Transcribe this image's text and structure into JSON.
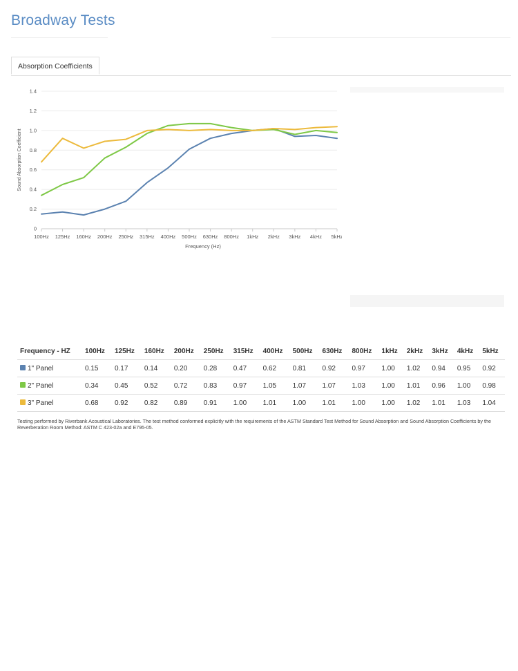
{
  "page": {
    "title": "Broadway Tests"
  },
  "tabs": [
    {
      "label": "Absorption Coefficients",
      "active": true
    }
  ],
  "colors": {
    "title": "#5a8cc4",
    "panel1": "#5b82b0",
    "panel2": "#7ec846",
    "panel3": "#ecba3c"
  },
  "chart_data": {
    "type": "line",
    "categories": [
      "100Hz",
      "125Hz",
      "160Hz",
      "200Hz",
      "250Hz",
      "315Hz",
      "400Hz",
      "500Hz",
      "630Hz",
      "800Hz",
      "1kHz",
      "2kHz",
      "3kHz",
      "4kHz",
      "5kHz"
    ],
    "series": [
      {
        "name": "1\" Panel",
        "color": "#5b82b0",
        "values": [
          0.15,
          0.17,
          0.14,
          0.2,
          0.28,
          0.47,
          0.62,
          0.81,
          0.92,
          0.97,
          1.0,
          1.02,
          0.94,
          0.95,
          0.92
        ]
      },
      {
        "name": "2\" Panel",
        "color": "#7ec846",
        "values": [
          0.34,
          0.45,
          0.52,
          0.72,
          0.83,
          0.97,
          1.05,
          1.07,
          1.07,
          1.03,
          1.0,
          1.01,
          0.96,
          1.0,
          0.98
        ]
      },
      {
        "name": "3\" Panel",
        "color": "#ecba3c",
        "values": [
          0.68,
          0.92,
          0.82,
          0.89,
          0.91,
          1.0,
          1.01,
          1.0,
          1.01,
          1.0,
          1.0,
          1.02,
          1.01,
          1.03,
          1.04
        ]
      }
    ],
    "xlabel": "Frequency (Hz)",
    "ylabel": "Sound Absorption Coefficient",
    "ylim": [
      0,
      1.4
    ],
    "yticks": [
      "0",
      "0.2",
      "0.4",
      "0.6",
      "0.8",
      "1.0",
      "1.2",
      "1.4"
    ],
    "grid": true
  },
  "table": {
    "header": [
      "Frequency - HZ",
      "100Hz",
      "125Hz",
      "160Hz",
      "200Hz",
      "250Hz",
      "315Hz",
      "400Hz",
      "500Hz",
      "630Hz",
      "800Hz",
      "1kHz",
      "2kHz",
      "3kHz",
      "4kHz",
      "5kHz"
    ],
    "rows": [
      {
        "label": "1\" Panel",
        "color": "#5b82b0",
        "values": [
          "0.15",
          "0.17",
          "0.14",
          "0.20",
          "0.28",
          "0.47",
          "0.62",
          "0.81",
          "0.92",
          "0.97",
          "1.00",
          "1.02",
          "0.94",
          "0.95",
          "0.92"
        ]
      },
      {
        "label": "2\" Panel",
        "color": "#7ec846",
        "values": [
          "0.34",
          "0.45",
          "0.52",
          "0.72",
          "0.83",
          "0.97",
          "1.05",
          "1.07",
          "1.07",
          "1.03",
          "1.00",
          "1.01",
          "0.96",
          "1.00",
          "0.98"
        ]
      },
      {
        "label": "3\" Panel",
        "color": "#ecba3c",
        "values": [
          "0.68",
          "0.92",
          "0.82",
          "0.89",
          "0.91",
          "1.00",
          "1.01",
          "1.00",
          "1.01",
          "1.00",
          "1.00",
          "1.02",
          "1.01",
          "1.03",
          "1.04"
        ]
      }
    ]
  },
  "footnote": "Testing performed by Riverbank Acoustical Laboratories. The test method conformed explicitly with the requirements of the ASTM Standard Test Method for Sound Absorption and Sound Absorption Coefficients by the Reverberation Room Method: ASTM C 423-02a and E795-05."
}
